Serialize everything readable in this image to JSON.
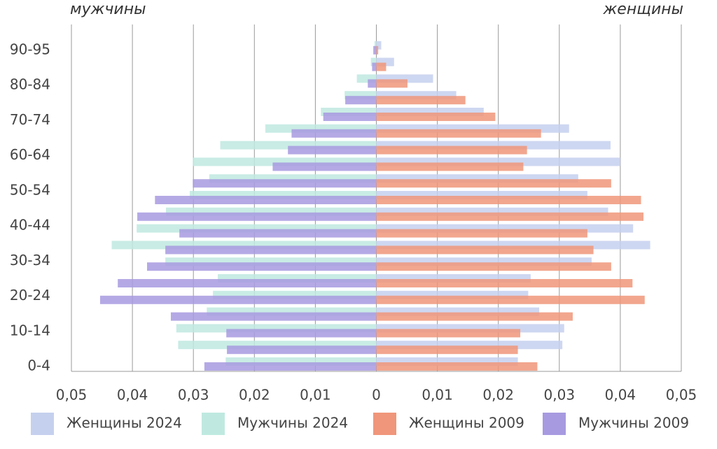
{
  "chart_data": {
    "type": "pyramid",
    "left_label": "мужчины",
    "right_label": "женщины",
    "categories": [
      "0-4",
      null,
      "10-14",
      null,
      "20-24",
      null,
      "30-34",
      null,
      "40-44",
      null,
      "50-54",
      null,
      "60-64",
      null,
      "70-74",
      null,
      "80-84",
      null,
      null,
      "90-95"
    ],
    "xlim": [
      -0.05,
      0.05
    ],
    "xticks": [
      {
        "value": -0.05,
        "label": "0,05"
      },
      {
        "value": -0.04,
        "label": "0,04"
      },
      {
        "value": -0.03,
        "label": "0,03"
      },
      {
        "value": -0.02,
        "label": "0,02"
      },
      {
        "value": -0.01,
        "label": "0,01"
      },
      0,
      {
        "value": 0.01,
        "label": "0,01"
      },
      {
        "value": 0.02,
        "label": "0,02"
      },
      {
        "value": 0.03,
        "label": "0,03"
      },
      {
        "value": 0.04,
        "label": "0,04"
      },
      {
        "value": 0.05,
        "label": "0,05"
      }
    ],
    "grid": true,
    "series": [
      {
        "name": "Женщины 2024",
        "color": "#c5d0ee",
        "values": [
          0.0232,
          0.0305,
          0.0308,
          0.0267,
          0.0249,
          0.0253,
          0.0353,
          0.0449,
          0.0421,
          0.038,
          0.0346,
          0.0331,
          0.04,
          0.0384,
          0.0316,
          0.0176,
          0.0131,
          0.0093,
          0.0029,
          0.0008
        ]
      },
      {
        "name": "Мужчины 2024",
        "color": "#bfe9e0",
        "values": [
          -0.0247,
          -0.0325,
          -0.0328,
          -0.0278,
          -0.0268,
          -0.026,
          -0.0346,
          -0.0434,
          -0.0393,
          -0.0345,
          -0.0306,
          -0.0274,
          -0.0301,
          -0.0256,
          -0.0182,
          -0.0091,
          -0.0052,
          -0.0032,
          -0.0009,
          -0.0003
        ]
      },
      {
        "name": "Женщины 2009",
        "color": "#f0967a",
        "values": [
          0.0264,
          0.0232,
          0.0236,
          0.0322,
          0.044,
          0.042,
          0.0385,
          0.0356,
          0.0346,
          0.0438,
          0.0434,
          0.0385,
          0.0241,
          0.0247,
          0.027,
          0.0195,
          0.0146,
          0.0051,
          0.0016,
          0.0003
        ]
      },
      {
        "name": "Мужчины 2009",
        "color": "#a89ae0",
        "values": [
          -0.0282,
          -0.0245,
          -0.0246,
          -0.0337,
          -0.0453,
          -0.0424,
          -0.0376,
          -0.0346,
          -0.0323,
          -0.0392,
          -0.0363,
          -0.0301,
          -0.017,
          -0.0145,
          -0.0139,
          -0.0087,
          -0.0051,
          -0.0014,
          -0.0007,
          -0.0005
        ]
      }
    ]
  }
}
